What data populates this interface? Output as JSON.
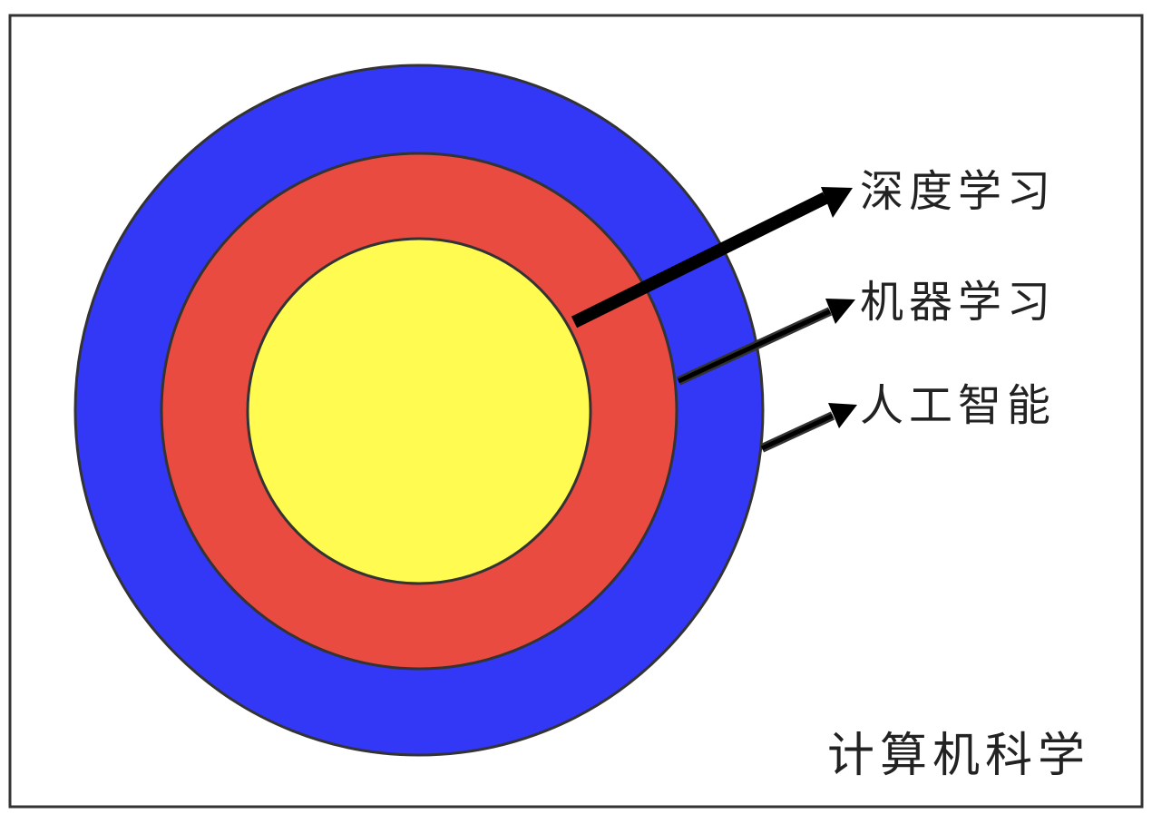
{
  "diagram": {
    "outer_area_label": "计算机科学",
    "rings": [
      {
        "id": "ai",
        "label": "人工智能",
        "color": "#3238f5"
      },
      {
        "id": "ml",
        "label": "机器学习",
        "color": "#e94b41"
      },
      {
        "id": "dl",
        "label": "深度学习",
        "color": "#fffb50"
      }
    ],
    "colors": {
      "frame": "#333333",
      "ring_stroke": "#333333",
      "arrow": "#000000",
      "text": "#222222"
    }
  }
}
